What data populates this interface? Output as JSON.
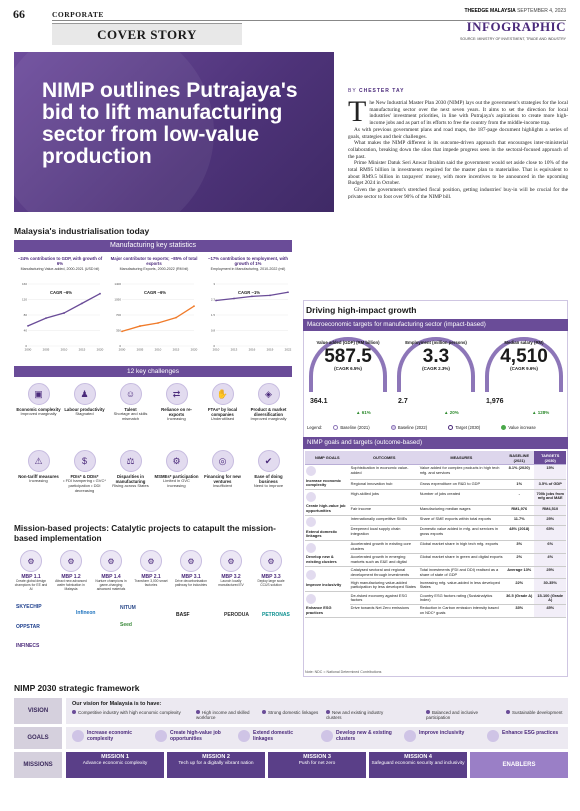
{
  "header": {
    "page_number": "66",
    "section": "CORPORATE",
    "paper": "THEEDGE MALAYSIA",
    "date": "SEPTEMBER 4, 2023",
    "label": "INFOGRAPHIC",
    "source": "SOURCE: MINISTRY OF INVESTMENT, TRADE AND INDUSTRY",
    "cover": "COVER STORY"
  },
  "hero": {
    "headline": "NIMP outlines Putrajaya's bid to lift manufacturing sector from low-value production"
  },
  "article": {
    "byline_prefix": "BY",
    "byline_name": "CHESTER TAY",
    "dropcap": "T",
    "paragraphs": [
      "he New Industrial Master Plan 2030 (NIMP) lays out the government's strategies for the local manufacturing sector over the next seven years. It aims to set the direction for local industries' investment priorities, in line with Putrajaya's aspirations to create more high-income jobs and as part of its efforts to free the country from the middle-income trap.",
      "As with previous government plans and road maps, the 187-page document highlights a series of goals, strategies and their challenges.",
      "What makes the NIMP different is its outcome-driven approach that encourages inter-ministerial collaboration, breaking down the silos that impede progress seen in the sectoral-focused approach of the past.",
      "Prime Minister Datuk Seri Anwar Ibrahim said the government would set aside close to 10% of the total RM95 billion in investments required for the master plan to materialise. That is equivalent to about RM9.5 billion in taxpayers' money, with more incentives to be announced in the upcoming Budget 2024 in October.",
      "Given the government's stretched fiscal position, getting industries' buy-in will be crucial for the private sector to foot over 90% of the NIMP bill."
    ]
  },
  "industrialisation": {
    "title": "Malaysia's industrialisation today",
    "subtitle": "Manufacturing key statistics",
    "challenges_title": "12 key challenges"
  },
  "chart_data": [
    {
      "type": "line",
      "title": "~24% contribution to GDP, with growth of 6%",
      "subtitle": "Manufacturing Value-added, 2000-2021 (USD bil)",
      "annotation": "CAGR ~6%",
      "x": [
        2000,
        2005,
        2010,
        2015,
        2020
      ],
      "y": [
        52,
        72,
        85,
        110,
        135
      ],
      "ylim": [
        0,
        160
      ],
      "color": "#6a4c98"
    },
    {
      "type": "line",
      "title": "Major contributor to exports; ~85% of total exports",
      "subtitle": "Manufacturing Exports, 2000-2022 (RM bil)",
      "annotation": "CAGR ~6%",
      "x": [
        2000,
        2005,
        2010,
        2015,
        2020
      ],
      "y": [
        330,
        450,
        520,
        640,
        900
      ],
      "ylim": [
        0,
        1400
      ],
      "color": "#f07b2a"
    },
    {
      "type": "line",
      "title": "~17% contribution to employment, with growth of 1%",
      "subtitle": "Employment in Manufacturing, 2010-2022 (mil)",
      "annotation": "CAGR ~1%",
      "x": [
        2010,
        2013,
        2016,
        2019,
        2022
      ],
      "y": [
        2.2,
        2.3,
        2.4,
        2.45,
        2.6
      ],
      "ylim": [
        0,
        3
      ],
      "color": "#6a4c98"
    }
  ],
  "challenges": [
    {
      "title": "Economic complexity",
      "desc": "Improved marginally",
      "icon": "▣"
    },
    {
      "title": "Labour productivity",
      "desc": "Stagnated",
      "icon": "♟"
    },
    {
      "title": "Talent",
      "desc": "Shortage and skills mismatch",
      "icon": "☺"
    },
    {
      "title": "Reliance on re-exports",
      "desc": "Increasing",
      "icon": "⇄"
    },
    {
      "title": "FTAs* by local companies",
      "desc": "Underutilised",
      "icon": "✋"
    },
    {
      "title": "Product & market diversification",
      "desc": "Improved marginally",
      "icon": "◈"
    },
    {
      "title": "Non-tariff measures",
      "desc": "Increasing",
      "icon": "⚠"
    },
    {
      "title": "FDIs* & DDIs*",
      "desc": "• FDI hampering • GVC* participation • DDI decreasing",
      "icon": "$"
    },
    {
      "title": "Disparities in manufacturing",
      "desc": "Rising across States",
      "icon": "⚖"
    },
    {
      "title": "MSMEs* participation",
      "desc": "Limited in GVC increasing",
      "icon": "⚙"
    },
    {
      "title": "Financing for new ventures",
      "desc": "Insufficient",
      "icon": "◎"
    },
    {
      "title": "Ease of doing business",
      "desc": "Need to improve",
      "icon": "✔"
    }
  ],
  "mission_projects": {
    "title": "Mission-based projects: Catalytic projects to catapult the mission-based implementation",
    "items": [
      {
        "code": "MBP 1.1",
        "desc": "Create global design champions for EE and AI"
      },
      {
        "code": "MBP 1.2",
        "desc": "Attract new advanced wafer fabrication in Malaysia"
      },
      {
        "code": "MBP 1.4",
        "desc": "Nurture champions in game-changing advanced materials"
      },
      {
        "code": "MBP 2.1",
        "desc": "Transform 3,000 smart factories"
      },
      {
        "code": "MBP 3.1",
        "desc": "Drive decarbonisation pathway for industries"
      },
      {
        "code": "MBP 3.2",
        "desc": "Launch locally manufactured EV"
      },
      {
        "code": "MBP 3.3",
        "desc": "Deploy large scale CCUS solution"
      }
    ],
    "logos": [
      "SKYECHIP",
      "Infineon",
      "NITUM",
      "OPPSTAR",
      "Seed",
      "INFINECS",
      "PERODUA",
      "PETRONAS",
      "BASF"
    ]
  },
  "driving": {
    "title": "Driving high-impact growth",
    "macro_subtitle": "Macroeconomic targets for manufacturing sector (impact-based)",
    "targets": [
      {
        "caption": "Value added (GDP) (RM billion)",
        "target": "587.5",
        "cagr": "(CAGR 6.5%)",
        "baseline": "364.1",
        "growth": "61%"
      },
      {
        "caption": "Employment (million persons)",
        "target": "3.3",
        "cagr": "(CAGR 2.3%)",
        "baseline": "2.7",
        "growth": "20%"
      },
      {
        "caption": "Median salary (RM)",
        "target": "4,510",
        "cagr": "(CAGR 9.6%)",
        "baseline": "1,976",
        "growth": "128%"
      }
    ],
    "legend": {
      "label": "Legend:",
      "items": [
        "Baseline (2021)",
        "Baseline (2022)",
        "Target (2030)",
        "Value increase"
      ]
    },
    "goals_subtitle": "NIMP goals and targets (outcome-based)",
    "table_headers": [
      "NIMP GOALS",
      "OUTCOMES",
      "MEASURES",
      "BASELINE (2021)",
      "TARGETS (2030)"
    ],
    "table_groups": [
      {
        "goal": "Increase economic complexity",
        "rows": [
          [
            "Sophistication in economic value-added",
            "Value added for complex products in high tech mfg. and services",
            "8.1% (2020)",
            "15%"
          ],
          [
            "Regional innovation hub",
            "Gross expenditure on R&D to GDP",
            "1%",
            "3.5% of GDP"
          ]
        ]
      },
      {
        "goal": "Create high-value job opportunities",
        "rows": [
          [
            "High-skilled jobs",
            "Number of jobs created",
            "-",
            "700k jobs from mfg and M&E"
          ],
          [
            "Fair income",
            "Manufacturing median wages",
            "RM1,976",
            "RM4,510"
          ]
        ]
      },
      {
        "goal": "Extend domestic linkages",
        "rows": [
          [
            "Internationally competitive SMEs",
            "Share of SME exports within total exports",
            "11.7%",
            "25%"
          ],
          [
            "Deepened local supply chain integration",
            "Domestic value added in mfg. and services in gross exports",
            "48% (2018)",
            "65%"
          ]
        ]
      },
      {
        "goal": "Develop new & existing clusters",
        "rows": [
          [
            "Accelerated growth in existing core clusters",
            "Global market share in high tech mfg. exports",
            "3%",
            "6%"
          ],
          [
            "Accelerated growth in emerging markets such as E&E and digital",
            "Global market share in green and digital exports",
            "2%",
            "4%"
          ]
        ]
      },
      {
        "goal": "Improve inclusivity",
        "rows": [
          [
            "Catalysed sectoral and regional development through investments",
            "Total investments (FDI and DDI) realised as a share of state of GDP",
            "Average 13%",
            "25%"
          ],
          [
            "High manufacturing value-added participation by less developed States",
            "Increasing mfg. value-added in less developed States",
            "22%",
            "30-35%"
          ]
        ]
      },
      {
        "goal": "Enhance ESG practices",
        "rows": [
          [
            "De-risked economy against ESG factors",
            "Country ESG factors rating (Sustainalytics Index)",
            "36.5 (Grade A)",
            "15-100 (Grade A)"
          ],
          [
            "Drive towards Net Zero emissions",
            "Reduction in Carbon emission intensity based on NDC* goals",
            "33%",
            "45%"
          ]
        ]
      }
    ],
    "note": "Note: NDC = National Determined Contributions"
  },
  "framework": {
    "title": "NIMP 2030 strategic framework",
    "vision_label": "VISION",
    "goals_label": "GOALS",
    "missions_label": "MISSIONS",
    "vision_head": "Our vision for Malaysia is to have:",
    "vision_items": [
      "Competitive industry with high economic complexity",
      "High income and skilled workforce",
      "Strong domestic linkages",
      "New and existing industry clusters",
      "Balanced and inclusive participation",
      "Sustainable development"
    ],
    "goals": [
      "Increase economic complexity",
      "Create high-value job opportunities",
      "Extend domestic linkages",
      "Develop new & existing clusters",
      "Improve inclusivity",
      "Enhance ESG practices"
    ],
    "missions": [
      {
        "title": "MISSION 1",
        "desc": "Advance economic complexity"
      },
      {
        "title": "MISSION 2",
        "desc": "Tech up for a digitally vibrant nation"
      },
      {
        "title": "MISSION 3",
        "desc": "Push for net zero"
      },
      {
        "title": "MISSION 4",
        "desc": "Safeguard economic security and inclusivity"
      }
    ],
    "enablers": "ENABLERS"
  }
}
